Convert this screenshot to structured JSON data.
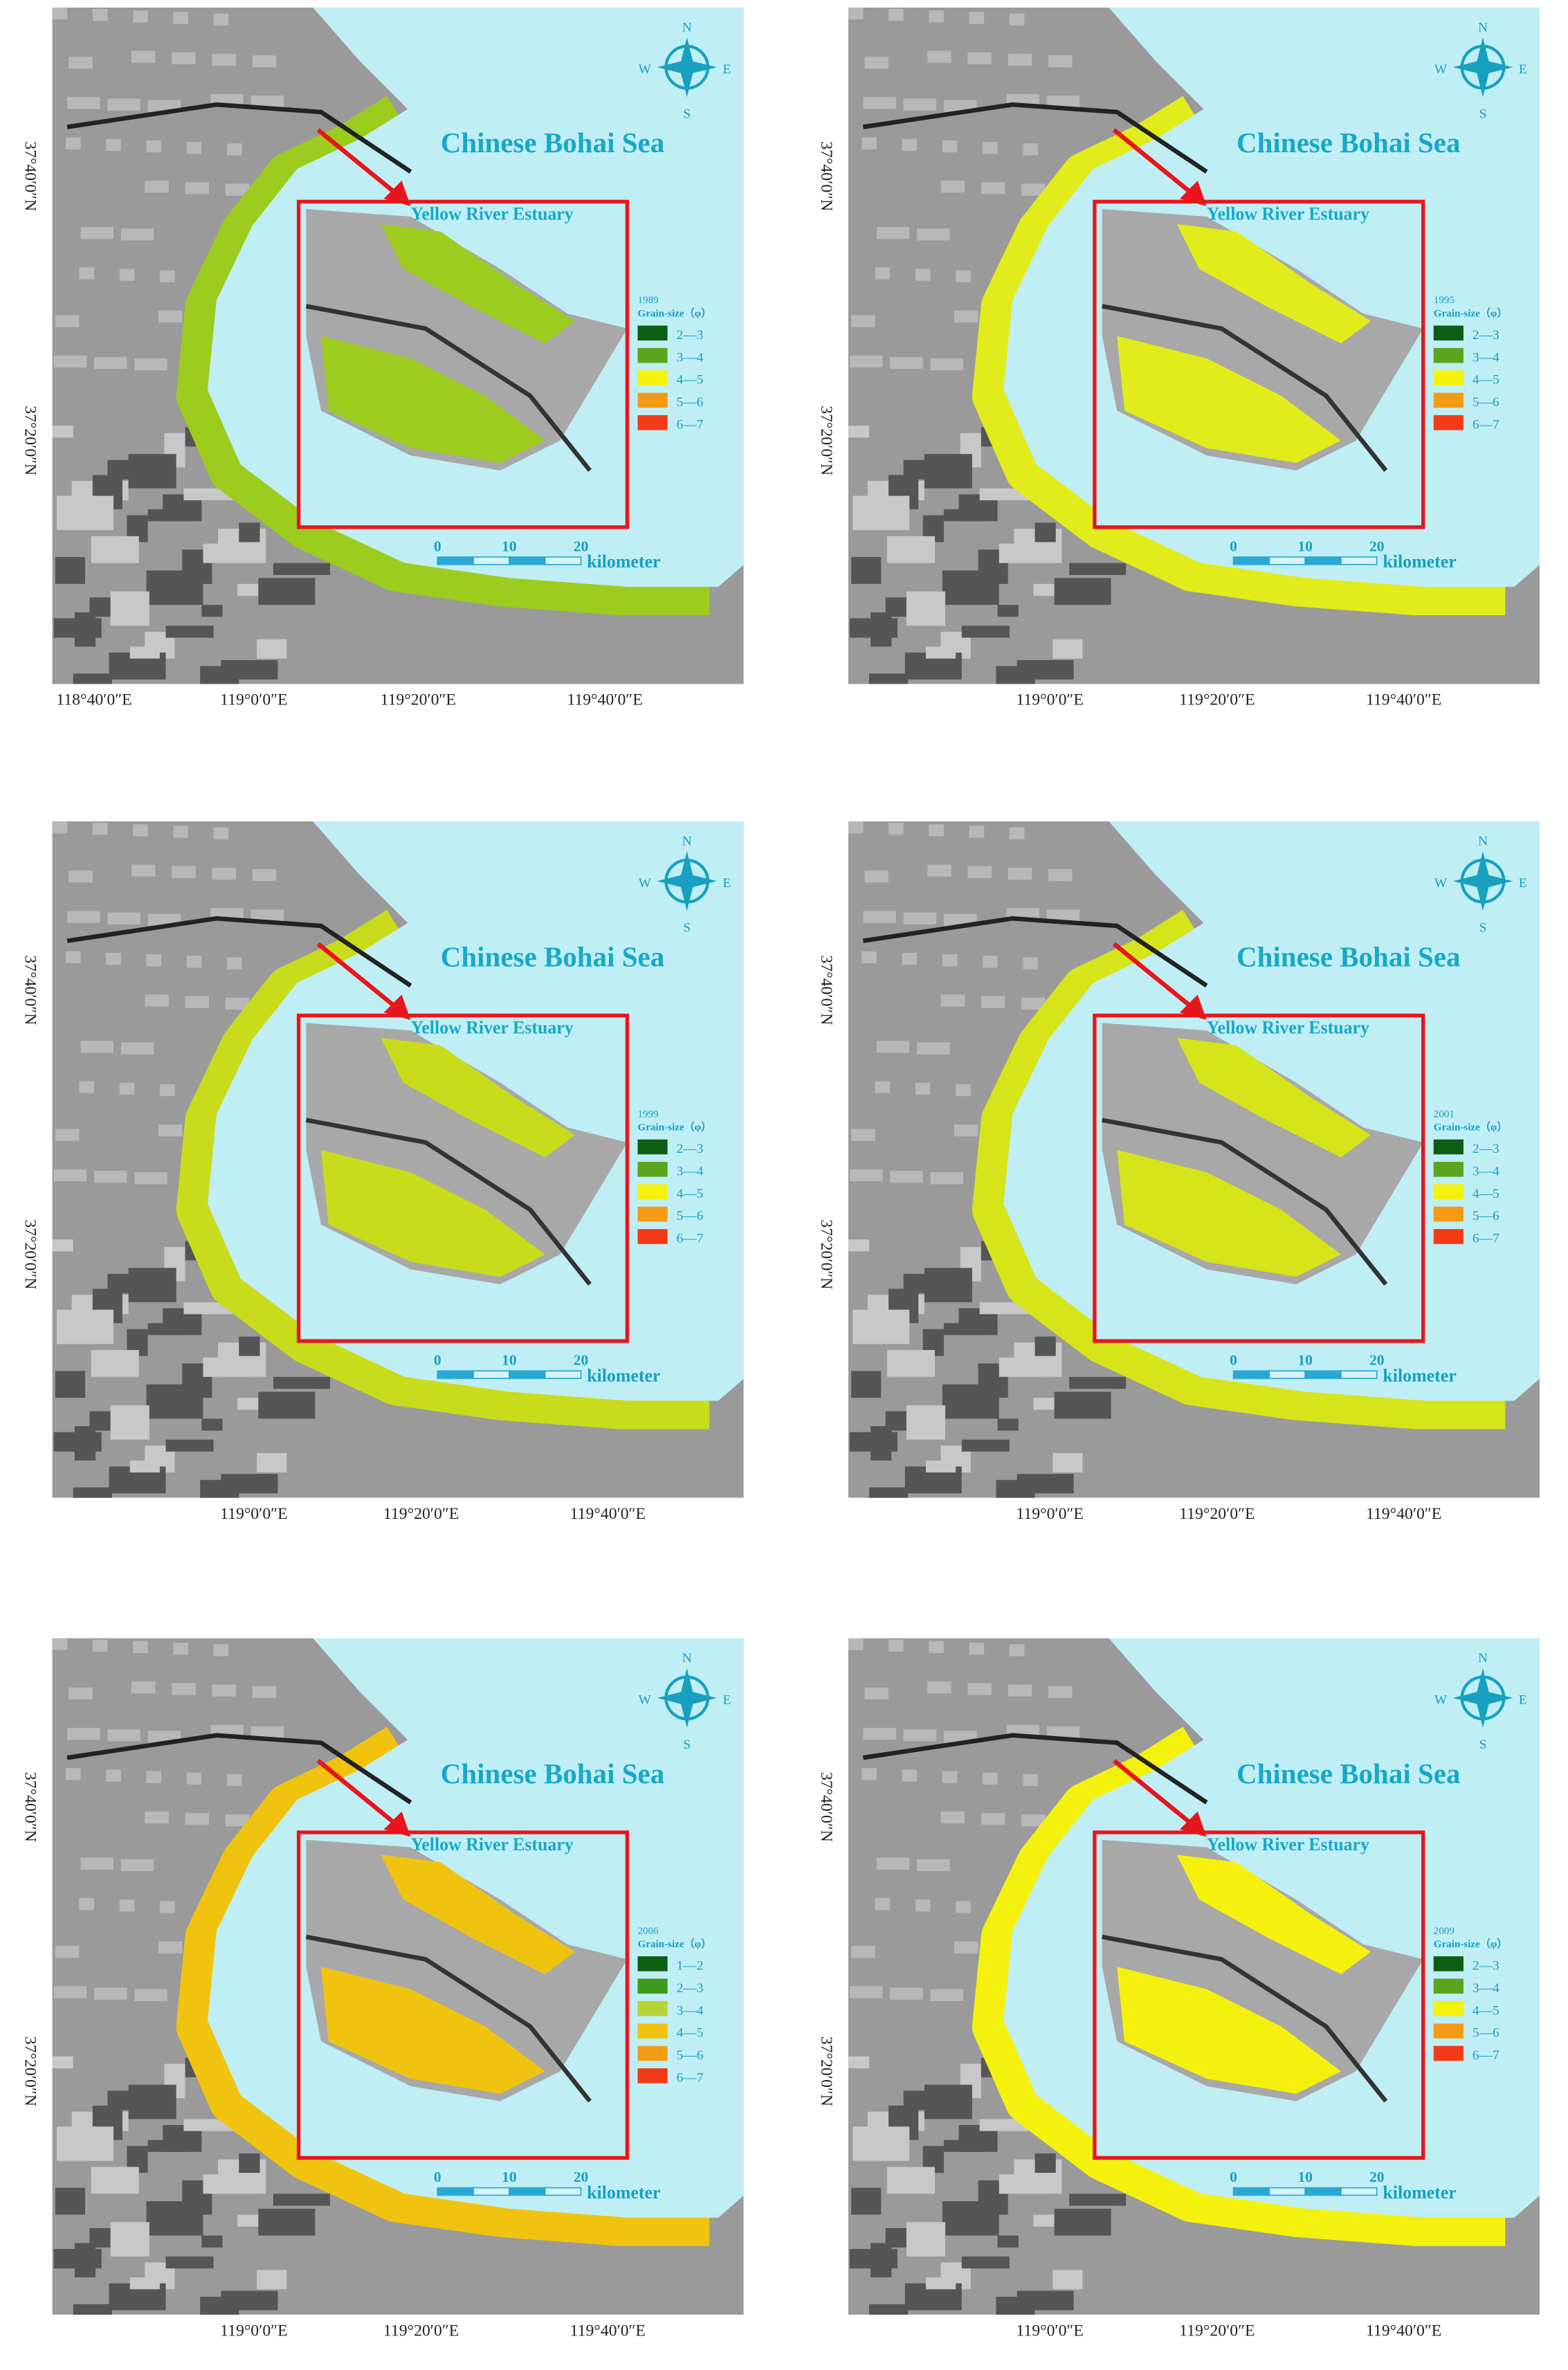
{
  "panels": [
    {
      "title": "Chinese Bohai Sea",
      "inset_label": "Yellow River Estuary",
      "compass": [
        "N",
        "E",
        "S",
        "W"
      ],
      "coast_color": "#9ccc1e",
      "legend": {
        "year": "1989",
        "heading": "Grain-size（φ）",
        "classes": [
          {
            "label": "2—3",
            "color": "#0b5e12"
          },
          {
            "label": "3—4",
            "color": "#5aa51e"
          },
          {
            "label": "4—5",
            "color": "#f4f20c"
          },
          {
            "label": "5—6",
            "color": "#f59a14"
          },
          {
            "label": "6—7",
            "color": "#f23a16"
          }
        ]
      },
      "scale": {
        "ticks": [
          "0",
          "10",
          "20"
        ],
        "unit": "kilometer"
      },
      "lat_labels": [
        "37°40′0″N",
        "37°20′0″N"
      ],
      "lon_labels": [
        "118°40′0″E",
        "119°0′0″E",
        "119°20′0″E",
        "119°40′0″E"
      ]
    },
    {
      "title": "Chinese Bohai Sea",
      "inset_label": "Yellow River Estuary",
      "compass": [
        "N",
        "E",
        "S",
        "W"
      ],
      "coast_color": "#e2ec1a",
      "legend": {
        "year": "1995",
        "heading": "Grain-size（φ）",
        "classes": [
          {
            "label": "2—3",
            "color": "#0b5e12"
          },
          {
            "label": "3—4",
            "color": "#5aa51e"
          },
          {
            "label": "4—5",
            "color": "#f4f20c"
          },
          {
            "label": "5—6",
            "color": "#f59a14"
          },
          {
            "label": "6—7",
            "color": "#f23a16"
          }
        ]
      },
      "scale": {
        "ticks": [
          "0",
          "10",
          "20"
        ],
        "unit": "kilometer"
      },
      "lat_labels": [
        "37°40′0″N",
        "37°20′0″N"
      ],
      "lon_labels": [
        "119°0′0″E",
        "119°20′0″E",
        "119°40′0″E"
      ]
    },
    {
      "title": "Chinese Bohai Sea",
      "inset_label": "Yellow River Estuary",
      "compass": [
        "N",
        "E",
        "S",
        "W"
      ],
      "coast_color": "#c8dc1c",
      "legend": {
        "year": "1999",
        "heading": "Grain-size（φ）",
        "classes": [
          {
            "label": "2—3",
            "color": "#0b5e12"
          },
          {
            "label": "3—4",
            "color": "#5aa51e"
          },
          {
            "label": "4—5",
            "color": "#f4f20c"
          },
          {
            "label": "5—6",
            "color": "#f59a14"
          },
          {
            "label": "6—7",
            "color": "#f23a16"
          }
        ]
      },
      "scale": {
        "ticks": [
          "0",
          "10",
          "20"
        ],
        "unit": "kilometer"
      },
      "lat_labels": [
        "37°40′0″N",
        "37°20′0″N"
      ],
      "lon_labels": [
        "119°0′0″E",
        "119°20′0″E",
        "119°40′0″E"
      ]
    },
    {
      "title": "Chinese Bohai Sea",
      "inset_label": "Yellow River Estuary",
      "compass": [
        "N",
        "E",
        "S",
        "W"
      ],
      "coast_color": "#d6e41a",
      "legend": {
        "year": "2001",
        "heading": "Grain-size（φ）",
        "classes": [
          {
            "label": "2—3",
            "color": "#0b5e12"
          },
          {
            "label": "3—4",
            "color": "#5aa51e"
          },
          {
            "label": "4—5",
            "color": "#f4f20c"
          },
          {
            "label": "5—6",
            "color": "#f59a14"
          },
          {
            "label": "6—7",
            "color": "#f23a16"
          }
        ]
      },
      "scale": {
        "ticks": [
          "0",
          "10",
          "20"
        ],
        "unit": "kilometer"
      },
      "lat_labels": [
        "37°40′0″N",
        "37°20′0″N"
      ],
      "lon_labels": [
        "119°0′0″E",
        "119°20′0″E",
        "119°40′0″E"
      ]
    },
    {
      "title": "Chinese Bohai Sea",
      "inset_label": "Yellow River Estuary",
      "compass": [
        "N",
        "E",
        "S",
        "W"
      ],
      "coast_color": "#f0c40e",
      "legend": {
        "year": "2006",
        "heading": "Grain-size（φ）",
        "classes": [
          {
            "label": "1—2",
            "color": "#0b5e12"
          },
          {
            "label": "2—3",
            "color": "#3f9a1e"
          },
          {
            "label": "3—4",
            "color": "#b7d336"
          },
          {
            "label": "4—5",
            "color": "#f0c40e"
          },
          {
            "label": "5—6",
            "color": "#f59a14"
          },
          {
            "label": "6—7",
            "color": "#f23a16"
          }
        ]
      },
      "scale": {
        "ticks": [
          "0",
          "10",
          "20"
        ],
        "unit": "kilometer"
      },
      "lat_labels": [
        "37°40′0″N",
        "37°20′0″N"
      ],
      "lon_labels": [
        "119°0′0″E",
        "119°20′0″E",
        "119°40′0″E"
      ]
    },
    {
      "title": "Chinese Bohai Sea",
      "inset_label": "Yellow River Estuary",
      "compass": [
        "N",
        "E",
        "S",
        "W"
      ],
      "coast_color": "#f4f20c",
      "legend": {
        "year": "2009",
        "heading": "Grain-size（φ）",
        "classes": [
          {
            "label": "2—3",
            "color": "#0b5e12"
          },
          {
            "label": "3—4",
            "color": "#5aa51e"
          },
          {
            "label": "4—5",
            "color": "#f4f20c"
          },
          {
            "label": "5—6",
            "color": "#f59a14"
          },
          {
            "label": "6—7",
            "color": "#f23a16"
          }
        ]
      },
      "scale": {
        "ticks": [
          "0",
          "10",
          "20"
        ],
        "unit": "kilometer"
      },
      "lat_labels": [
        "37°40′0″N",
        "37°20′0″N"
      ],
      "lon_labels": [
        "119°0′0″E",
        "119°20′0″E",
        "119°40′0″E"
      ]
    }
  ]
}
